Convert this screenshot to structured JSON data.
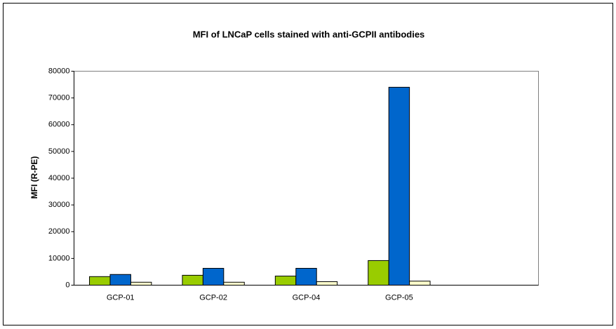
{
  "chart_data": {
    "type": "bar",
    "title": "MFI of LNCaP cells stained with anti-GCPII antibodies",
    "y_label": "MFI (R-PE)",
    "categories": [
      "GCP-01",
      "GCP-02",
      "GCP-04",
      "GCP-05",
      null
    ],
    "series": [
      {
        "color": "#99cc00",
        "values": [
          3200,
          3700,
          3400,
          9200,
          null
        ]
      },
      {
        "color": "#0066cc",
        "values": [
          4000,
          6300,
          6300,
          74000,
          null
        ]
      },
      {
        "color": "#ffffcc",
        "values": [
          1100,
          1100,
          1300,
          1500,
          null
        ]
      }
    ],
    "ylim": [
      0,
      80000
    ],
    "yticks": [
      0,
      10000,
      20000,
      30000,
      40000,
      50000,
      60000,
      70000,
      80000
    ],
    "grid": false
  }
}
